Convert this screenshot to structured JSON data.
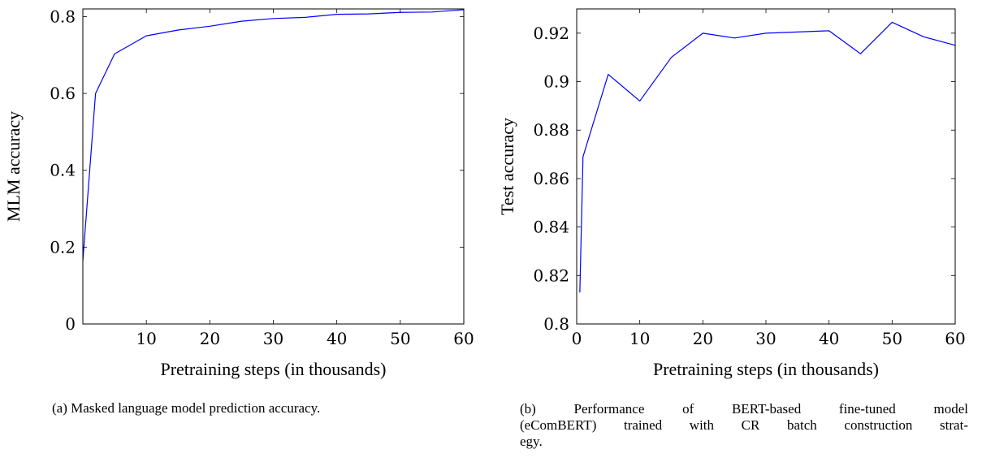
{
  "captions": {
    "a": "(a) Masked language model prediction accuracy.",
    "b_line1": "(b)  Performance  of  BERT-based  fine-tuned  model",
    "b_line2": "(eComBERT)  trained  with  CR  batch  construction  strat-",
    "b_line3": "egy."
  },
  "colors": {
    "line": "#0000ff",
    "axis": "#000000"
  },
  "chart_data": [
    {
      "type": "line",
      "title": "",
      "xlabel": "Pretraining steps (in thousands)",
      "ylabel": "MLM accuracy",
      "xlim": [
        0,
        60
      ],
      "ylim": [
        0,
        0.82
      ],
      "xticks": [
        10,
        20,
        30,
        40,
        50,
        60
      ],
      "xtick_labels": [
        "10",
        "20",
        "30",
        "40",
        "50",
        "60"
      ],
      "yticks": [
        0,
        0.2,
        0.4,
        0.6,
        0.8
      ],
      "ytick_labels": [
        "0",
        "0.2",
        "0.4",
        "0.6",
        "0.8"
      ],
      "grid": false,
      "series": [
        {
          "x": [
            0,
            2,
            5,
            10,
            15,
            20,
            25,
            30,
            35,
            40,
            45,
            50,
            55,
            60
          ],
          "y": [
            0.165,
            0.6,
            0.703,
            0.75,
            0.765,
            0.775,
            0.788,
            0.795,
            0.798,
            0.806,
            0.807,
            0.811,
            0.812,
            0.818
          ]
        }
      ]
    },
    {
      "type": "line",
      "title": "",
      "xlabel": "Pretraining steps (in thousands)",
      "ylabel": "Test accuracy",
      "xlim": [
        0,
        60
      ],
      "ylim": [
        0.8,
        0.93
      ],
      "xticks": [
        0,
        10,
        20,
        30,
        40,
        50,
        60
      ],
      "xtick_labels": [
        "0",
        "10",
        "20",
        "30",
        "40",
        "50",
        "60"
      ],
      "yticks": [
        0.8,
        0.82,
        0.84,
        0.86,
        0.88,
        0.9,
        0.92
      ],
      "ytick_labels": [
        "0.8",
        "0.82",
        "0.84",
        "0.86",
        "0.88",
        "0.9",
        "0.92"
      ],
      "grid": false,
      "series": [
        {
          "x": [
            0.5,
            1,
            5,
            10,
            15,
            20,
            25,
            30,
            35,
            40,
            45,
            50,
            55,
            60
          ],
          "y": [
            0.813,
            0.869,
            0.903,
            0.892,
            0.91,
            0.92,
            0.918,
            0.92,
            0.9205,
            0.921,
            0.9115,
            0.9245,
            0.9185,
            0.915
          ]
        }
      ]
    }
  ]
}
